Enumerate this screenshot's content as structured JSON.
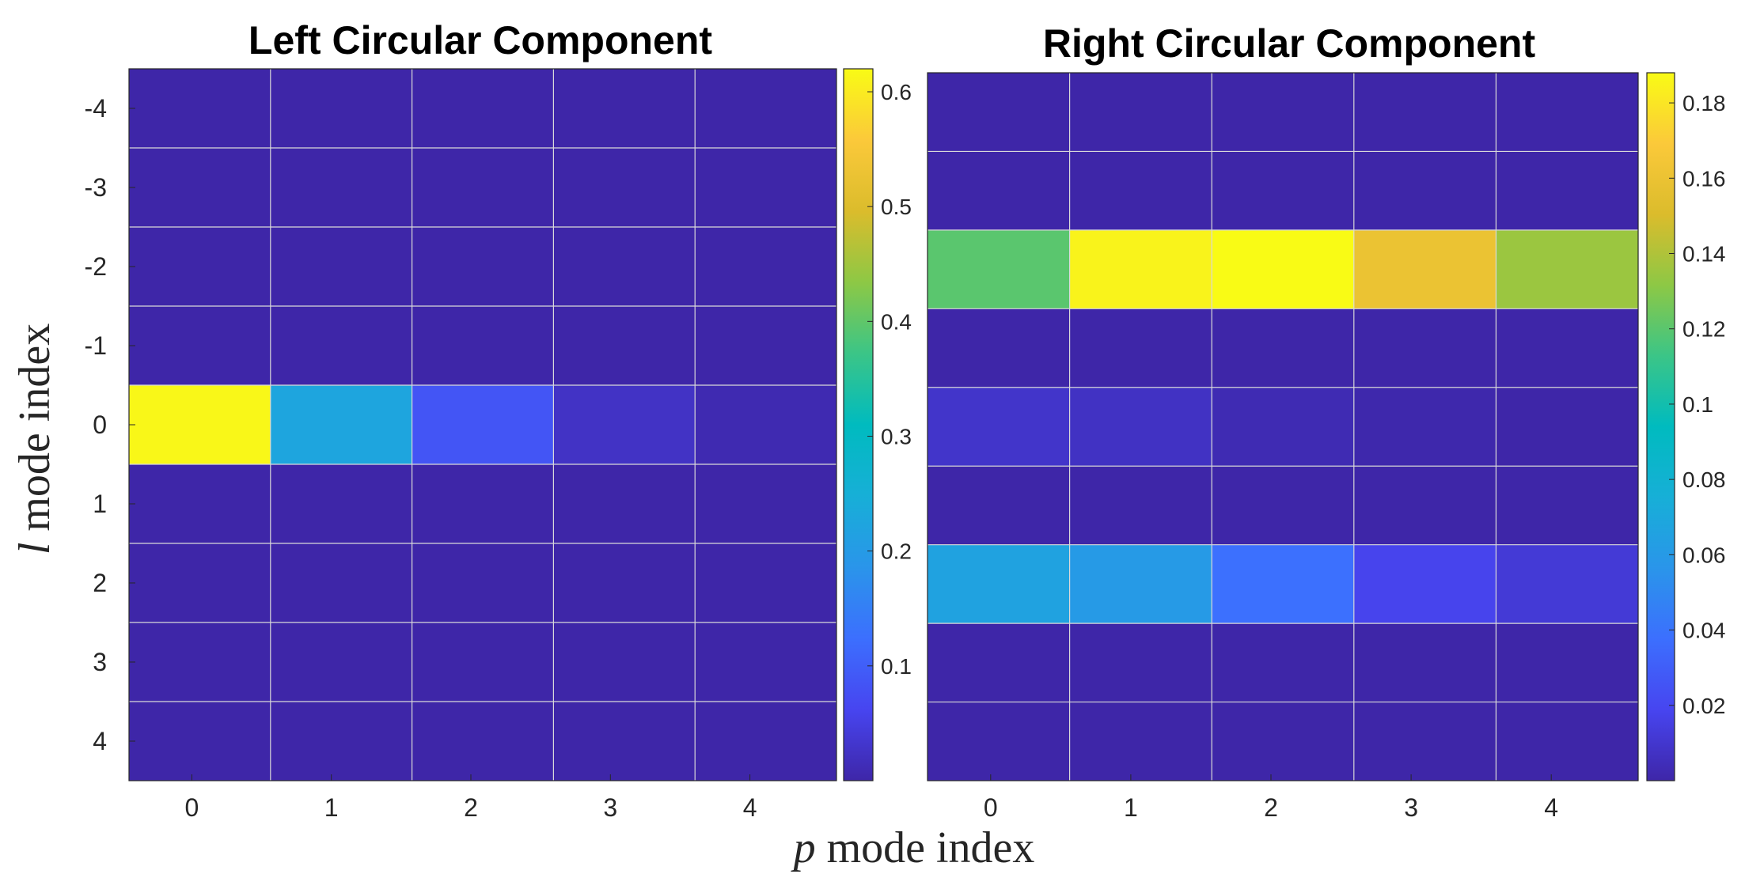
{
  "chart_data": [
    {
      "type": "heatmap",
      "title": "Left Circular Component",
      "x": [
        0,
        1,
        2,
        3,
        4
      ],
      "y": [
        -4,
        -3,
        -2,
        -1,
        0,
        1,
        2,
        3,
        4
      ],
      "x_tick_labels": [
        "0",
        "1",
        "2",
        "3",
        "4"
      ],
      "y_tick_labels": [
        "-4",
        "-3",
        "-2",
        "-1",
        "0",
        "1",
        "2",
        "3",
        "4"
      ],
      "values": [
        [
          0.0,
          0.0,
          0.0,
          0.0,
          0.0
        ],
        [
          0.0,
          0.0,
          0.0,
          0.0,
          0.0
        ],
        [
          0.0,
          0.0,
          0.0,
          0.0,
          0.0
        ],
        [
          0.0,
          0.0,
          0.0,
          0.0,
          0.0
        ],
        [
          0.615,
          0.225,
          0.085,
          0.025,
          0.008
        ],
        [
          0.0,
          0.0,
          0.0,
          0.0,
          0.0
        ],
        [
          0.0,
          0.0,
          0.0,
          0.0,
          0.0
        ],
        [
          0.0,
          0.0,
          0.0,
          0.0,
          0.0
        ],
        [
          0.0,
          0.0,
          0.0,
          0.0,
          0.0
        ]
      ],
      "colorbar": {
        "range": [
          0,
          0.62
        ],
        "ticks": [
          "0.1",
          "0.2",
          "0.3",
          "0.4",
          "0.5",
          "0.6"
        ]
      },
      "colormap": "parula",
      "grid": true
    },
    {
      "type": "heatmap",
      "title": "Right Circular Component",
      "x": [
        0,
        1,
        2,
        3,
        4
      ],
      "y": [
        -4,
        -3,
        -2,
        -1,
        0,
        1,
        2,
        3,
        4
      ],
      "x_tick_labels": [
        "0",
        "1",
        "2",
        "3",
        "4"
      ],
      "y_tick_labels": [],
      "values": [
        [
          0.0,
          0.0,
          0.0,
          0.0,
          0.0
        ],
        [
          0.0,
          0.0,
          0.0,
          0.0,
          0.0
        ],
        [
          0.12,
          0.185,
          0.188,
          0.16,
          0.135
        ],
        [
          0.0,
          0.0,
          0.0,
          0.0,
          0.0
        ],
        [
          0.009,
          0.007,
          0.003,
          0.001,
          0.0
        ],
        [
          0.0,
          0.0,
          0.0,
          0.0,
          0.0
        ],
        [
          0.066,
          0.06,
          0.038,
          0.018,
          0.012
        ],
        [
          0.0,
          0.0,
          0.0,
          0.0,
          0.0
        ],
        [
          0.0,
          0.0,
          0.0,
          0.0,
          0.0
        ]
      ],
      "colorbar": {
        "range": [
          0,
          0.188
        ],
        "ticks": [
          "0.02",
          "0.04",
          "0.06",
          "0.08",
          "0.1",
          "0.12",
          "0.14",
          "0.16",
          "0.18"
        ]
      },
      "colormap": "parula",
      "grid": true
    }
  ],
  "shared": {
    "xlabel_var": "p",
    "xlabel_rest": " mode index",
    "ylabel_var": "l",
    "ylabel_rest": " mode index",
    "grid_color": "#d9d9d9"
  }
}
